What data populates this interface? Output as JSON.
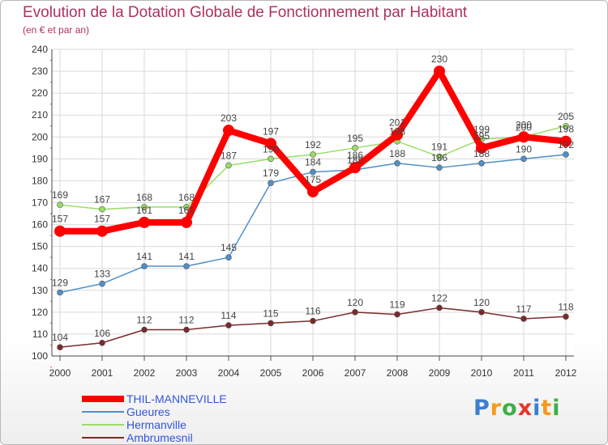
{
  "title": "Evolution de la Dotation Globale de Fonctionnement par Habitant",
  "subtitle": "(en € et par an)",
  "brand": {
    "letters": [
      {
        "char": "P",
        "color": "#3a7fd0"
      },
      {
        "char": "r",
        "color": "#f39a1e"
      },
      {
        "char": "o",
        "color": "#3fae49"
      },
      {
        "char": "x",
        "color": "#e7352b"
      },
      {
        "char": "i",
        "color": "#3a7fd0"
      },
      {
        "char": "t",
        "color": "#f39a1e"
      },
      {
        "char": "i",
        "color": "#3fae49"
      }
    ]
  },
  "chart_data": {
    "type": "line",
    "title": "Evolution de la Dotation Globale de Fonctionnement par Habitant",
    "subtitle": "(en € et par an)",
    "x": [
      2000,
      2001,
      2002,
      2003,
      2004,
      2005,
      2006,
      2007,
      2008,
      2009,
      2010,
      2011,
      2012
    ],
    "ylim": [
      100,
      240
    ],
    "ytick_step": 10,
    "grid": true,
    "legend_position": "bottom-left",
    "series": [
      {
        "name": "Hermanville",
        "color": "#99dd66",
        "values": [
          169,
          167,
          168,
          168,
          187,
          190,
          192,
          195,
          198,
          191,
          199,
          200,
          205
        ]
      },
      {
        "name": "Gueures",
        "color": "#4f90c8",
        "values": [
          129,
          133,
          141,
          141,
          145,
          179,
          184,
          185,
          188,
          186,
          188,
          190,
          192
        ]
      },
      {
        "name": "Ambrumesnil",
        "color": "#7a2a2a",
        "values": [
          104,
          106,
          112,
          112,
          114,
          115,
          116,
          120,
          119,
          122,
          120,
          117,
          118
        ]
      },
      {
        "name": "THIL-MANNEVILLE",
        "color": "#ff0000",
        "values": [
          157,
          157,
          161,
          161,
          203,
          197,
          175,
          186,
          201,
          230,
          195,
          200,
          198
        ]
      }
    ],
    "legend_order": [
      "THIL-MANNEVILLE",
      "Gueures",
      "Hermanville",
      "Ambrumesnil"
    ]
  }
}
